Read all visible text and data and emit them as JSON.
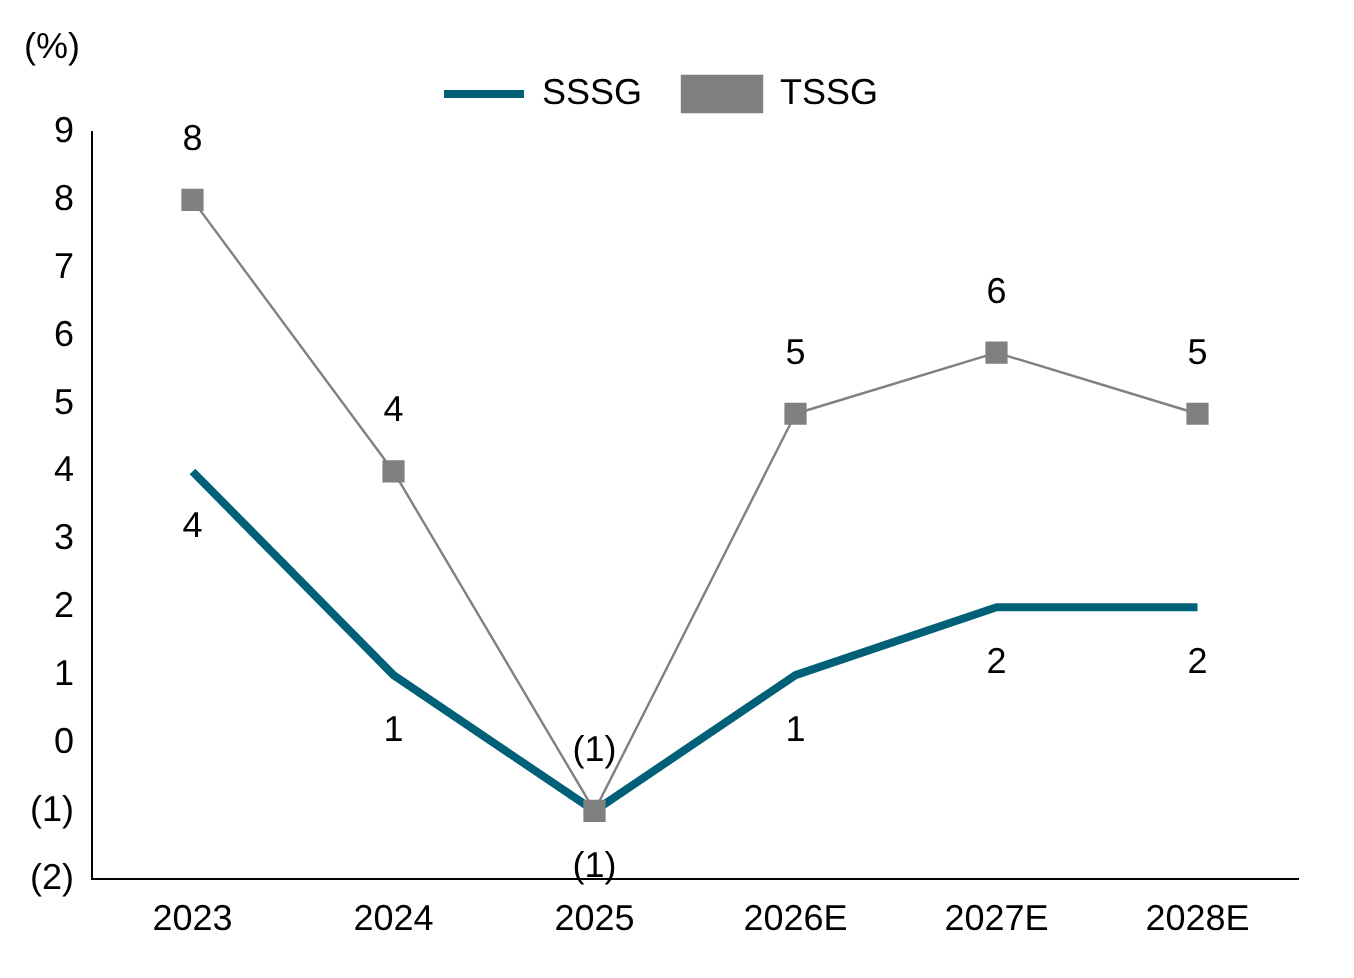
{
  "chart_data": {
    "type": "line",
    "ylabel": "(%)",
    "categories": [
      "2023",
      "2024",
      "2025",
      "2026E",
      "2027E",
      "2028E"
    ],
    "series": [
      {
        "name": "SSSG",
        "color": "#006078",
        "marker": "none",
        "values": [
          4,
          1,
          -1,
          1,
          2,
          2
        ],
        "value_labels": [
          "4",
          "1",
          "(1)",
          "1",
          "2",
          "2"
        ]
      },
      {
        "name": "TSSG",
        "color": "#808080",
        "marker": "square",
        "values": [
          8,
          4,
          -1,
          4.85,
          5.75,
          4.85
        ],
        "value_labels": [
          "8",
          "4",
          "(1)",
          "5",
          "6",
          "5"
        ]
      }
    ],
    "ylim": [
      -2,
      9
    ],
    "yticks": [
      {
        "value": -2,
        "label": "(2)"
      },
      {
        "value": -1,
        "label": "(1)"
      },
      0,
      1,
      2,
      3,
      4,
      5,
      6,
      7,
      8,
      9
    ],
    "grid": false,
    "legend": "top"
  }
}
